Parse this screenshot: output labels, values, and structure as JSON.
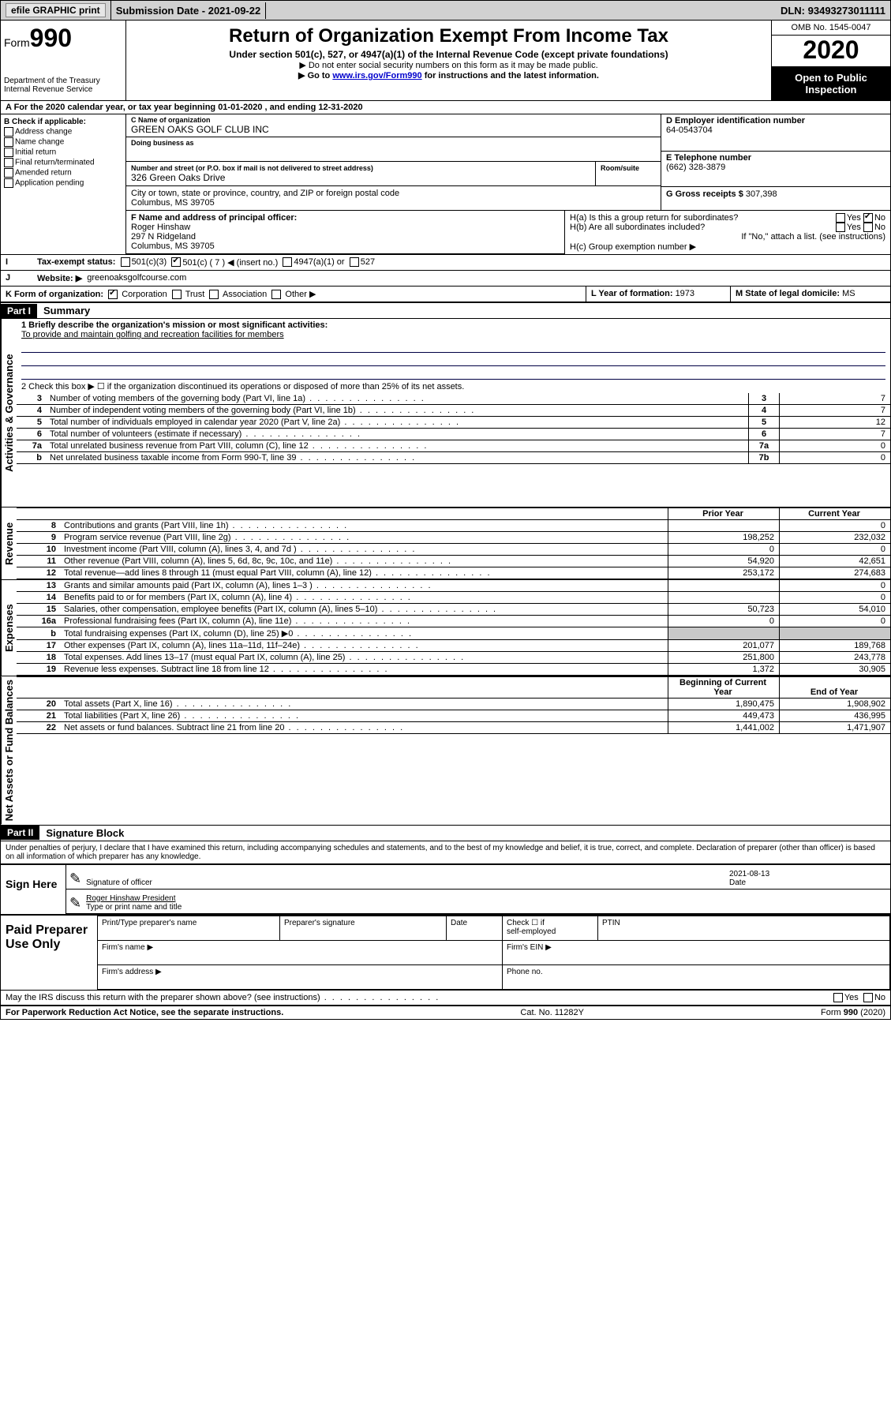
{
  "topbar": {
    "efile": "efile GRAPHIC print",
    "subdate_lbl": "Submission Date - ",
    "subdate": "2021-09-22",
    "dln_lbl": "DLN: ",
    "dln": "93493273011111"
  },
  "header": {
    "form_word": "Form",
    "form_num": "990",
    "dept": "Department of the Treasury",
    "irs": "Internal Revenue Service",
    "title": "Return of Organization Exempt From Income Tax",
    "sub": "Under section 501(c), 527, or 4947(a)(1) of the Internal Revenue Code (except private foundations)",
    "note1": "▶ Do not enter social security numbers on this form as it may be made public.",
    "note2_pre": "▶ Go to ",
    "note2_link": "www.irs.gov/Form990",
    "note2_post": " for instructions and the latest information.",
    "omb": "OMB No. 1545-0047",
    "year": "2020",
    "open": "Open to Public Inspection"
  },
  "rowA": "A For the 2020 calendar year, or tax year beginning 01-01-2020   , and ending 12-31-2020",
  "B": {
    "title": "B Check if applicable:",
    "opts": [
      "Address change",
      "Name change",
      "Initial return",
      "Final return/terminated",
      "Amended return",
      "Application pending"
    ]
  },
  "C": {
    "name_lbl": "C Name of organization",
    "name": "GREEN OAKS GOLF CLUB INC",
    "dba_lbl": "Doing business as",
    "addr_lbl": "Number and street (or P.O. box if mail is not delivered to street address)",
    "room_lbl": "Room/suite",
    "addr": "326 Green Oaks Drive",
    "city_lbl": "City or town, state or province, country, and ZIP or foreign postal code",
    "city": "Columbus, MS  39705"
  },
  "D": {
    "lbl": "D Employer identification number",
    "val": "64-0543704"
  },
  "E": {
    "lbl": "E Telephone number",
    "val": "(662) 328-3879"
  },
  "G": {
    "lbl": "G Gross receipts $ ",
    "val": "307,398"
  },
  "F": {
    "lbl": "F  Name and address of principal officer:",
    "l1": "Roger Hinshaw",
    "l2": "297 N Ridgeland",
    "l3": "Columbus, MS  39705"
  },
  "H": {
    "a": "H(a)  Is this a group return for subordinates?",
    "b": "H(b)  Are all subordinates included?",
    "bNote": "If \"No,\" attach a list. (see instructions)",
    "c": "H(c)  Group exemption number ▶",
    "yes": "Yes",
    "no": "No"
  },
  "I": {
    "lbl": "Tax-exempt status:",
    "o1": "501(c)(3)",
    "o2": "501(c) ( 7 ) ◀ (insert no.)",
    "o3": "4947(a)(1) or",
    "o4": "527"
  },
  "J": {
    "lbl": "Website: ▶",
    "val": "greenoaksgolfcourse.com"
  },
  "K": {
    "lbl": "K Form of organization:",
    "o1": "Corporation",
    "o2": "Trust",
    "o3": "Association",
    "o4": "Other ▶"
  },
  "L": {
    "lbl": "L Year of formation: ",
    "val": "1973"
  },
  "M": {
    "lbl": "M State of legal domicile: ",
    "val": "MS"
  },
  "part1": {
    "hdr": "Part I",
    "title": "Summary"
  },
  "summary": {
    "q1_lbl": "1  Briefly describe the organization's mission or most significant activities:",
    "q1_val": "To provide and maintain golfing and recreation facilities for members",
    "q2": "2    Check this box ▶ ☐  if the organization discontinued its operations or disposed of more than 25% of its net assets."
  },
  "vlabels": {
    "gov": "Activities & Governance",
    "rev": "Revenue",
    "exp": "Expenses",
    "net": "Net Assets or Fund Balances"
  },
  "gov_lines": [
    {
      "n": "3",
      "t": "Number of voting members of the governing body (Part VI, line 1a)",
      "box": "3",
      "v": "7"
    },
    {
      "n": "4",
      "t": "Number of independent voting members of the governing body (Part VI, line 1b)",
      "box": "4",
      "v": "7"
    },
    {
      "n": "5",
      "t": "Total number of individuals employed in calendar year 2020 (Part V, line 2a)",
      "box": "5",
      "v": "12"
    },
    {
      "n": "6",
      "t": "Total number of volunteers (estimate if necessary)",
      "box": "6",
      "v": "7"
    },
    {
      "n": "7a",
      "t": "Total unrelated business revenue from Part VIII, column (C), line 12",
      "box": "7a",
      "v": "0"
    },
    {
      "n": "b",
      "t": "Net unrelated business taxable income from Form 990-T, line 39",
      "box": "7b",
      "v": "0"
    }
  ],
  "cols": {
    "py": "Prior Year",
    "cy": "Current Year",
    "boy": "Beginning of Current Year",
    "eoy": "End of Year"
  },
  "rev_lines": [
    {
      "n": "8",
      "t": "Contributions and grants (Part VIII, line 1h)",
      "py": "",
      "cy": "0"
    },
    {
      "n": "9",
      "t": "Program service revenue (Part VIII, line 2g)",
      "py": "198,252",
      "cy": "232,032"
    },
    {
      "n": "10",
      "t": "Investment income (Part VIII, column (A), lines 3, 4, and 7d )",
      "py": "0",
      "cy": "0"
    },
    {
      "n": "11",
      "t": "Other revenue (Part VIII, column (A), lines 5, 6d, 8c, 9c, 10c, and 11e)",
      "py": "54,920",
      "cy": "42,651"
    },
    {
      "n": "12",
      "t": "Total revenue—add lines 8 through 11 (must equal Part VIII, column (A), line 12)",
      "py": "253,172",
      "cy": "274,683"
    }
  ],
  "exp_lines": [
    {
      "n": "13",
      "t": "Grants and similar amounts paid (Part IX, column (A), lines 1–3 )",
      "py": "",
      "cy": "0"
    },
    {
      "n": "14",
      "t": "Benefits paid to or for members (Part IX, column (A), line 4)",
      "py": "",
      "cy": "0"
    },
    {
      "n": "15",
      "t": "Salaries, other compensation, employee benefits (Part IX, column (A), lines 5–10)",
      "py": "50,723",
      "cy": "54,010"
    },
    {
      "n": "16a",
      "t": "Professional fundraising fees (Part IX, column (A), line 11e)",
      "py": "0",
      "cy": "0"
    },
    {
      "n": "b",
      "t": "Total fundraising expenses (Part IX, column (D), line 25) ▶0",
      "py": "GRAY",
      "cy": "GRAY"
    },
    {
      "n": "17",
      "t": "Other expenses (Part IX, column (A), lines 11a–11d, 11f–24e)",
      "py": "201,077",
      "cy": "189,768"
    },
    {
      "n": "18",
      "t": "Total expenses. Add lines 13–17 (must equal Part IX, column (A), line 25)",
      "py": "251,800",
      "cy": "243,778"
    },
    {
      "n": "19",
      "t": "Revenue less expenses. Subtract line 18 from line 12",
      "py": "1,372",
      "cy": "30,905"
    }
  ],
  "net_lines": [
    {
      "n": "20",
      "t": "Total assets (Part X, line 16)",
      "py": "1,890,475",
      "cy": "1,908,902"
    },
    {
      "n": "21",
      "t": "Total liabilities (Part X, line 26)",
      "py": "449,473",
      "cy": "436,995"
    },
    {
      "n": "22",
      "t": "Net assets or fund balances. Subtract line 21 from line 20",
      "py": "1,441,002",
      "cy": "1,471,907"
    }
  ],
  "part2": {
    "hdr": "Part II",
    "title": "Signature Block"
  },
  "perjury": "Under penalties of perjury, I declare that I have examined this return, including accompanying schedules and statements, and to the best of my knowledge and belief, it is true, correct, and complete. Declaration of preparer (other than officer) is based on all information of which preparer has any knowledge.",
  "sign": {
    "here": "Sign Here",
    "sig_lbl": "Signature of officer",
    "date_lbl": "Date",
    "date": "2021-08-13",
    "name": "Roger Hinshaw  President",
    "name_lbl": "Type or print name and title"
  },
  "prep": {
    "title": "Paid Preparer Use Only",
    "c1": "Print/Type preparer's name",
    "c2": "Preparer's signature",
    "c3": "Date",
    "c4a": "Check ☐ if",
    "c4b": "self-employed",
    "c5": "PTIN",
    "r2a": "Firm's name   ▶",
    "r2b": "Firm's EIN ▶",
    "r3a": "Firm's address ▶",
    "r3b": "Phone no."
  },
  "discuss": "May the IRS discuss this return with the preparer shown above? (see instructions)",
  "footer": {
    "pra": "For Paperwork Reduction Act Notice, see the separate instructions.",
    "cat": "Cat. No. 11282Y",
    "form": "Form 990 (2020)"
  }
}
